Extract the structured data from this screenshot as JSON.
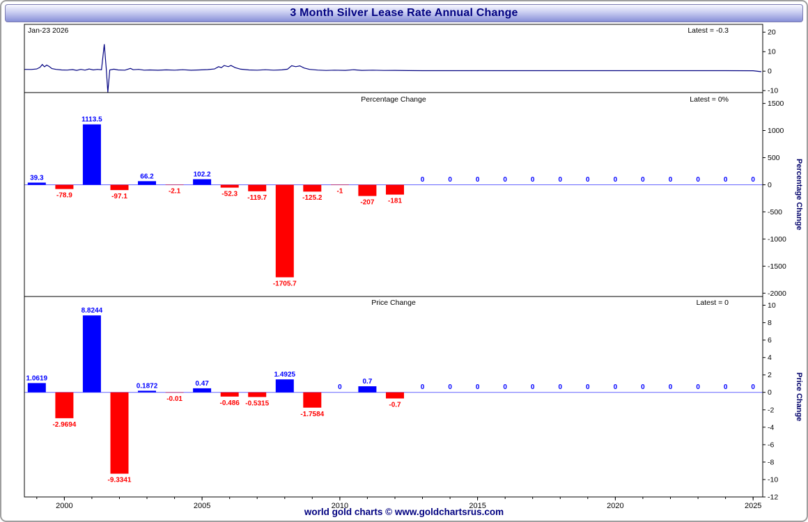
{
  "header": {
    "title": "3 Month Silver Lease Rate Annual Change"
  },
  "footer": {
    "text": "world gold charts © www.goldchartsrus.com"
  },
  "top_panel": {
    "date_label": "Jan-23 2026",
    "latest_label": "Latest = -0.3"
  },
  "pct_panel": {
    "title": "Percentage Change",
    "latest_label": "Latest = 0%",
    "ylabel": "Percentage Change"
  },
  "price_panel": {
    "title": "Price Change",
    "latest_label": "Latest = 0",
    "ylabel": "Price Change"
  },
  "colors": {
    "positive": "#0000ff",
    "negative": "#ff0000",
    "line": "#000080",
    "zero_line": "#6666ff",
    "axis": "#000000",
    "title": "#000080"
  },
  "x_axis": {
    "xlim": [
      1998.55,
      2025.35
    ],
    "major_ticks": [
      2000,
      2005,
      2010,
      2015,
      2020,
      2025
    ],
    "minor_step": 1,
    "minor_range": [
      1999,
      2025
    ]
  },
  "chart_data": [
    {
      "type": "line",
      "name": "lease-rate-line",
      "title": "3 Month Silver Lease Rate Annual Change",
      "ylim": [
        -11,
        24
      ],
      "yticks": [
        20,
        10,
        0,
        -10
      ],
      "latest": -0.3,
      "points": [
        [
          1998.56,
          0.9
        ],
        [
          1998.8,
          0.85
        ],
        [
          1999.0,
          1.1
        ],
        [
          1999.12,
          2.0
        ],
        [
          1999.2,
          3.4
        ],
        [
          1999.28,
          2.2
        ],
        [
          1999.36,
          3.1
        ],
        [
          1999.45,
          2.4
        ],
        [
          1999.55,
          1.3
        ],
        [
          1999.7,
          0.9
        ],
        [
          1999.9,
          0.6
        ],
        [
          2000.1,
          0.55
        ],
        [
          2000.3,
          0.8
        ],
        [
          2000.45,
          0.4
        ],
        [
          2000.6,
          0.9
        ],
        [
          2000.75,
          0.5
        ],
        [
          2000.9,
          1.1
        ],
        [
          2001.05,
          0.6
        ],
        [
          2001.2,
          0.9
        ],
        [
          2001.35,
          0.7
        ],
        [
          2001.45,
          13.8
        ],
        [
          2001.52,
          1.5
        ],
        [
          2001.58,
          -10.8
        ],
        [
          2001.65,
          0.6
        ],
        [
          2001.8,
          1.0
        ],
        [
          2001.95,
          0.6
        ],
        [
          2002.2,
          0.5
        ],
        [
          2002.4,
          1.4
        ],
        [
          2002.5,
          0.7
        ],
        [
          2002.7,
          0.9
        ],
        [
          2002.9,
          0.5
        ],
        [
          2003.1,
          0.6
        ],
        [
          2003.4,
          0.45
        ],
        [
          2003.7,
          0.65
        ],
        [
          2004.0,
          0.5
        ],
        [
          2004.3,
          0.7
        ],
        [
          2004.6,
          0.45
        ],
        [
          2004.9,
          0.6
        ],
        [
          2005.2,
          0.8
        ],
        [
          2005.45,
          1.1
        ],
        [
          2005.6,
          2.3
        ],
        [
          2005.7,
          1.8
        ],
        [
          2005.8,
          2.9
        ],
        [
          2005.95,
          2.3
        ],
        [
          2006.05,
          2.9
        ],
        [
          2006.2,
          1.8
        ],
        [
          2006.4,
          1.0
        ],
        [
          2006.7,
          0.6
        ],
        [
          2007.0,
          0.5
        ],
        [
          2007.3,
          0.7
        ],
        [
          2007.6,
          0.5
        ],
        [
          2007.9,
          0.65
        ],
        [
          2008.1,
          1.0
        ],
        [
          2008.25,
          2.8
        ],
        [
          2008.4,
          2.3
        ],
        [
          2008.55,
          2.7
        ],
        [
          2008.7,
          1.6
        ],
        [
          2008.9,
          0.9
        ],
        [
          2009.2,
          0.55
        ],
        [
          2009.5,
          0.35
        ],
        [
          2009.8,
          0.5
        ],
        [
          2010.2,
          0.4
        ],
        [
          2010.5,
          0.7
        ],
        [
          2010.8,
          0.4
        ],
        [
          2011.2,
          0.5
        ],
        [
          2011.6,
          0.35
        ],
        [
          2012.0,
          0.4
        ],
        [
          2012.5,
          0.3
        ],
        [
          2013.0,
          0.25
        ],
        [
          2014,
          0.25
        ],
        [
          2016,
          0.25
        ],
        [
          2018,
          0.25
        ],
        [
          2020,
          0.25
        ],
        [
          2022,
          0.25
        ],
        [
          2024,
          0.25
        ],
        [
          2025.0,
          0.2
        ],
        [
          2025.3,
          -0.3
        ]
      ]
    },
    {
      "type": "bar",
      "name": "percentage-change",
      "title": "Percentage Change",
      "ylabel": "Percentage Change",
      "ylim": [
        -2060,
        1700
      ],
      "yticks": [
        1500,
        1000,
        500,
        0,
        -500,
        -1000,
        -1500,
        -2000
      ],
      "latest": 0,
      "bars": [
        {
          "year": 1999,
          "value": 39.3,
          "label": "39.3"
        },
        {
          "year": 2000,
          "value": -78.9,
          "label": "-78.9"
        },
        {
          "year": 2001,
          "value": 1113.5,
          "label": "1113.5"
        },
        {
          "year": 2002,
          "value": -97.1,
          "label": "-97.1"
        },
        {
          "year": 2003,
          "value": 66.2,
          "label": "66.2"
        },
        {
          "year": 2004,
          "value": -2.1,
          "label": "-2.1"
        },
        {
          "year": 2005,
          "value": 102.2,
          "label": "102.2"
        },
        {
          "year": 2006,
          "value": -52.3,
          "label": "-52.3"
        },
        {
          "year": 2007,
          "value": -119.7,
          "label": "-119.7"
        },
        {
          "year": 2008,
          "value": -1705.7,
          "label": "-1705.7"
        },
        {
          "year": 2009,
          "value": -125.2,
          "label": "-125.2"
        },
        {
          "year": 2010,
          "value": -1,
          "label": "-1"
        },
        {
          "year": 2011,
          "value": -207,
          "label": "-207"
        },
        {
          "year": 2012,
          "value": -181,
          "label": "-181"
        },
        {
          "year": 2013,
          "value": 0,
          "label": "0"
        },
        {
          "year": 2014,
          "value": 0,
          "label": "0"
        },
        {
          "year": 2015,
          "value": 0,
          "label": "0"
        },
        {
          "year": 2016,
          "value": 0,
          "label": "0"
        },
        {
          "year": 2017,
          "value": 0,
          "label": "0"
        },
        {
          "year": 2018,
          "value": 0,
          "label": "0"
        },
        {
          "year": 2019,
          "value": 0,
          "label": "0"
        },
        {
          "year": 2020,
          "value": 0,
          "label": "0"
        },
        {
          "year": 2021,
          "value": 0,
          "label": "0"
        },
        {
          "year": 2022,
          "value": 0,
          "label": "0"
        },
        {
          "year": 2023,
          "value": 0,
          "label": "0"
        },
        {
          "year": 2024,
          "value": 0,
          "label": "0"
        },
        {
          "year": 2025,
          "value": 0,
          "label": "0"
        }
      ]
    },
    {
      "type": "bar",
      "name": "price-change",
      "title": "Price Change",
      "ylabel": "Price Change",
      "ylim": [
        -12,
        11
      ],
      "yticks": [
        10,
        8,
        6,
        4,
        2,
        0,
        -2,
        -4,
        -6,
        -8,
        -10,
        -12
      ],
      "latest": 0,
      "bars": [
        {
          "year": 1999,
          "value": 1.0619,
          "label": "1.0619"
        },
        {
          "year": 2000,
          "value": -2.9694,
          "label": "-2.9694"
        },
        {
          "year": 2001,
          "value": 8.8244,
          "label": "8.8244"
        },
        {
          "year": 2002,
          "value": -9.3341,
          "label": "-9.3341"
        },
        {
          "year": 2003,
          "value": 0.1872,
          "label": "0.1872"
        },
        {
          "year": 2004,
          "value": -0.01,
          "label": "-0.01"
        },
        {
          "year": 2005,
          "value": 0.47,
          "label": "0.47"
        },
        {
          "year": 2006,
          "value": -0.486,
          "label": "-0.486"
        },
        {
          "year": 2007,
          "value": -0.5315,
          "label": "-0.5315"
        },
        {
          "year": 2008,
          "value": 1.4925,
          "label": "1.4925"
        },
        {
          "year": 2009,
          "value": -1.7584,
          "label": "-1.7584"
        },
        {
          "year": 2010,
          "value": 0,
          "label": "0"
        },
        {
          "year": 2011,
          "value": 0.7,
          "label": "0.7"
        },
        {
          "year": 2012,
          "value": -0.7,
          "label": "-0.7"
        },
        {
          "year": 2013,
          "value": 0,
          "label": "0"
        },
        {
          "year": 2014,
          "value": 0,
          "label": "0"
        },
        {
          "year": 2015,
          "value": 0,
          "label": "0"
        },
        {
          "year": 2016,
          "value": 0,
          "label": "0"
        },
        {
          "year": 2017,
          "value": 0,
          "label": "0"
        },
        {
          "year": 2018,
          "value": 0,
          "label": "0"
        },
        {
          "year": 2019,
          "value": 0,
          "label": "0"
        },
        {
          "year": 2020,
          "value": 0,
          "label": "0"
        },
        {
          "year": 2021,
          "value": 0,
          "label": "0"
        },
        {
          "year": 2022,
          "value": 0,
          "label": "0"
        },
        {
          "year": 2023,
          "value": 0,
          "label": "0"
        },
        {
          "year": 2024,
          "value": 0,
          "label": "0"
        },
        {
          "year": 2025,
          "value": 0,
          "label": "0"
        }
      ]
    }
  ]
}
